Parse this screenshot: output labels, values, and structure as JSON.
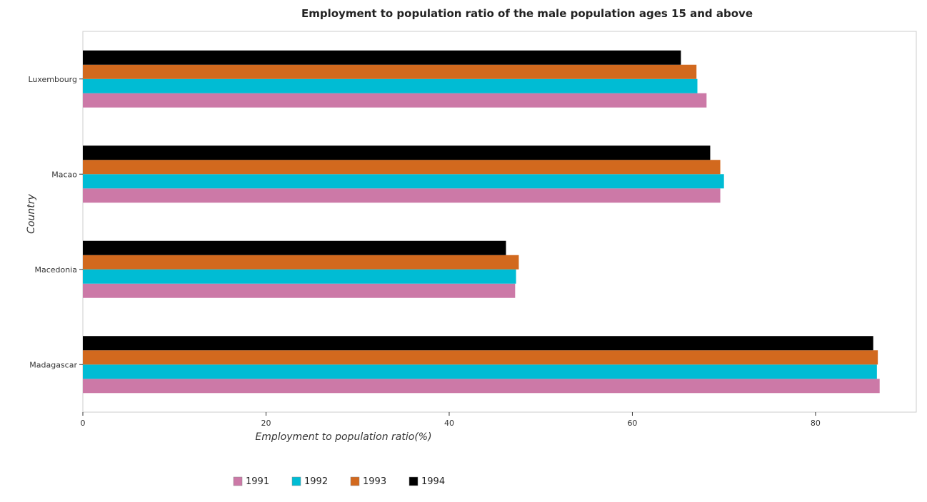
{
  "chart_data": {
    "type": "bar",
    "orientation": "horizontal",
    "title": "Employment to population ratio of the male population ages 15 and above",
    "xlabel": "Employment to population ratio(%)",
    "ylabel": "Country",
    "xlim": [
      0,
      91
    ],
    "xticks": [
      0,
      20,
      40,
      60,
      80
    ],
    "grid": false,
    "legend_position": "bottom-center",
    "categories": [
      "Luxembourg",
      "Macao",
      "Macedonia",
      "Madagascar"
    ],
    "series": [
      {
        "name": "1991",
        "color": "#cc79a7",
        "values": [
          68.1,
          69.6,
          47.2,
          87.0
        ]
      },
      {
        "name": "1992",
        "color": "#00bcd4",
        "values": [
          67.1,
          70.0,
          47.3,
          86.7
        ]
      },
      {
        "name": "1993",
        "color": "#d2691e",
        "values": [
          67.0,
          69.6,
          47.6,
          86.8
        ]
      },
      {
        "name": "1994",
        "color": "#000000",
        "values": [
          65.3,
          68.5,
          46.2,
          86.3
        ]
      }
    ]
  }
}
